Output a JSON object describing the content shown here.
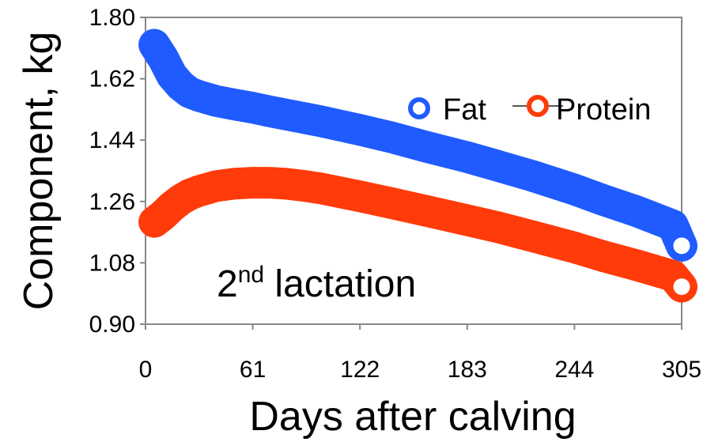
{
  "chart_data": {
    "type": "line",
    "xlabel": "Days after calving",
    "ylabel": "Component, kg",
    "xlim": [
      0,
      305
    ],
    "ylim": [
      0.9,
      1.8
    ],
    "x_ticks": [
      0,
      61,
      122,
      183,
      244,
      305
    ],
    "y_ticks": [
      "0.90",
      "1.08",
      "1.26",
      "1.44",
      "1.62",
      "1.80"
    ],
    "grid": false,
    "legend_position": "top-right",
    "annotation": {
      "main": "2",
      "sup": "nd",
      "rest": " lactation"
    },
    "x": [
      5,
      10,
      15,
      20,
      25,
      30,
      40,
      50,
      61,
      70,
      80,
      90,
      100,
      122,
      140,
      160,
      183,
      200,
      220,
      244,
      260,
      280,
      300,
      305
    ],
    "series": [
      {
        "name": "Fat",
        "color": "#1f5bff",
        "values": [
          1.72,
          1.68,
          1.63,
          1.6,
          1.58,
          1.57,
          1.555,
          1.545,
          1.535,
          1.525,
          1.515,
          1.505,
          1.495,
          1.47,
          1.448,
          1.42,
          1.39,
          1.365,
          1.335,
          1.295,
          1.265,
          1.23,
          1.19,
          1.13
        ]
      },
      {
        "name": "Protein",
        "color": "#ff3b0a",
        "values": [
          1.2,
          1.22,
          1.245,
          1.265,
          1.28,
          1.29,
          1.305,
          1.312,
          1.315,
          1.315,
          1.312,
          1.306,
          1.298,
          1.275,
          1.255,
          1.232,
          1.205,
          1.185,
          1.158,
          1.125,
          1.1,
          1.072,
          1.042,
          1.01
        ]
      }
    ]
  }
}
